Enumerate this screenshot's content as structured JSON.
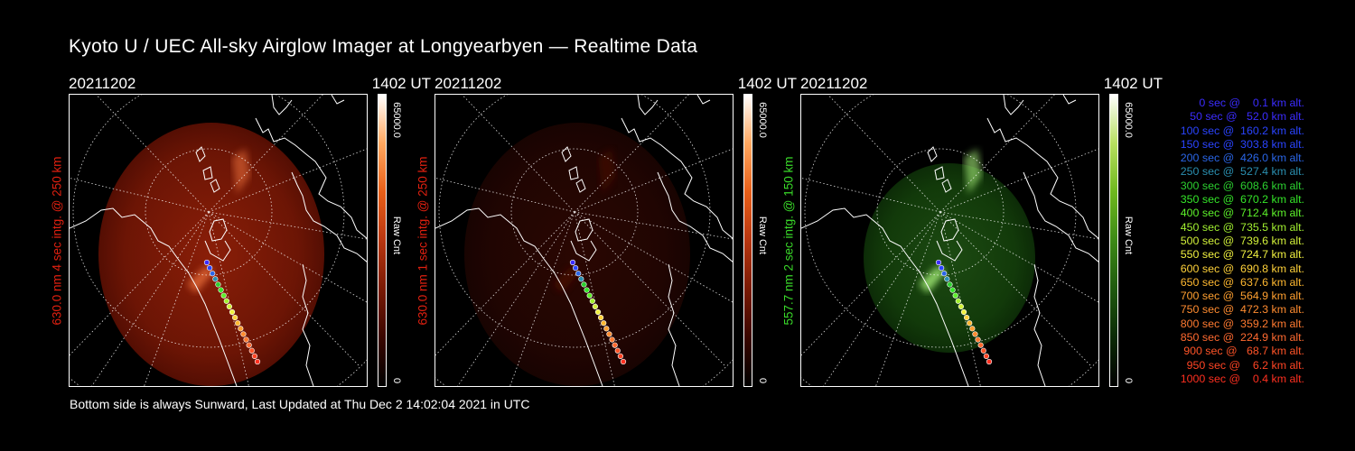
{
  "title": "Kyoto U / UEC All-sky Airglow Imager at Longyearbyen — Realtime Data",
  "footer": "Bottom side is always Sunward, Last Updated at Thu Dec  2 14:02:04 2021 in UTC",
  "panels": [
    {
      "date": "20211202",
      "time": "1402 UT",
      "ylabel": "630.0 nm 4 sec intg. @ 250 km",
      "ylabel_color": "#e02010",
      "colorbar_max": "65000.0",
      "colorbar_label": "Raw Cnt",
      "colorbar_min": "0",
      "colormap": [
        "#000000",
        "#3a0600",
        "#7a1a04",
        "#b83610",
        "#e85f18",
        "#ffa860",
        "#ffffff"
      ],
      "image_brightness": "bright"
    },
    {
      "date": "20211202",
      "time": "1402 UT",
      "ylabel": "630.0 nm 1 sec intg. @ 250 km",
      "ylabel_color": "#e02010",
      "colorbar_max": "65000.0",
      "colorbar_label": "Raw Cnt",
      "colorbar_min": "0",
      "colormap": [
        "#000000",
        "#3a0600",
        "#7a1a04",
        "#b83610",
        "#e85f18",
        "#ffa860",
        "#ffffff"
      ],
      "image_brightness": "dim"
    },
    {
      "date": "20211202",
      "time": "1402 UT",
      "ylabel": "557.7 nm 2 sec intg. @ 150 km",
      "ylabel_color": "#39d829",
      "colorbar_max": "65000.0",
      "colorbar_label": "Raw Cnt",
      "colorbar_min": "0",
      "colormap": [
        "#000000",
        "#0b2a06",
        "#1f5a0e",
        "#3d8a16",
        "#6fb81e",
        "#b8e060",
        "#ffffff"
      ],
      "image_brightness": "green"
    }
  ],
  "legend": [
    {
      "text": "   0 sec @    0.1 km alt.",
      "color": "#3b2cff"
    },
    {
      "text": "  50 sec @   52.0 km alt.",
      "color": "#3b2cff"
    },
    {
      "text": " 100 sec @  160.2 km alt.",
      "color": "#2a44ff"
    },
    {
      "text": " 150 sec @  303.8 km alt.",
      "color": "#2a44ff"
    },
    {
      "text": " 200 sec @  426.0 km alt.",
      "color": "#2a66e8"
    },
    {
      "text": " 250 sec @  527.4 km alt.",
      "color": "#2a8fb0"
    },
    {
      "text": " 300 sec @  608.6 km alt.",
      "color": "#2cd030"
    },
    {
      "text": " 350 sec @  670.2 km alt.",
      "color": "#34e628"
    },
    {
      "text": " 400 sec @  712.4 km alt.",
      "color": "#5cf02a"
    },
    {
      "text": " 450 sec @  735.5 km alt.",
      "color": "#a2f030"
    },
    {
      "text": " 500 sec @  739.6 km alt.",
      "color": "#d2f03a"
    },
    {
      "text": " 550 sec @  724.7 km alt.",
      "color": "#f0f040"
    },
    {
      "text": " 600 sec @  690.8 km alt.",
      "color": "#ffd23a"
    },
    {
      "text": " 650 sec @  637.6 km alt.",
      "color": "#ffb830"
    },
    {
      "text": " 700 sec @  564.9 km alt.",
      "color": "#ffa030"
    },
    {
      "text": " 750 sec @  472.3 km alt.",
      "color": "#ff8c30"
    },
    {
      "text": " 800 sec @  359.2 km alt.",
      "color": "#ff7a30"
    },
    {
      "text": " 850 sec @  224.9 km alt.",
      "color": "#ff6a30"
    },
    {
      "text": " 900 sec @   68.7 km alt.",
      "color": "#ff5428"
    },
    {
      "text": " 950 sec @    6.2 km alt.",
      "color": "#ff4424"
    },
    {
      "text": "1000 sec @    0.4 km alt.",
      "color": "#ff3020"
    }
  ],
  "trajectory_colors": [
    "#3b2cff",
    "#2a44ff",
    "#2a66e8",
    "#2a8fb0",
    "#2cd030",
    "#34e628",
    "#5cf02a",
    "#a2f030",
    "#d2f03a",
    "#f0f040",
    "#ffd23a",
    "#ffb830",
    "#ffa030",
    "#ff8c30",
    "#ff7a30",
    "#ff6a30",
    "#ff5428",
    "#ff4424",
    "#ff3020"
  ]
}
